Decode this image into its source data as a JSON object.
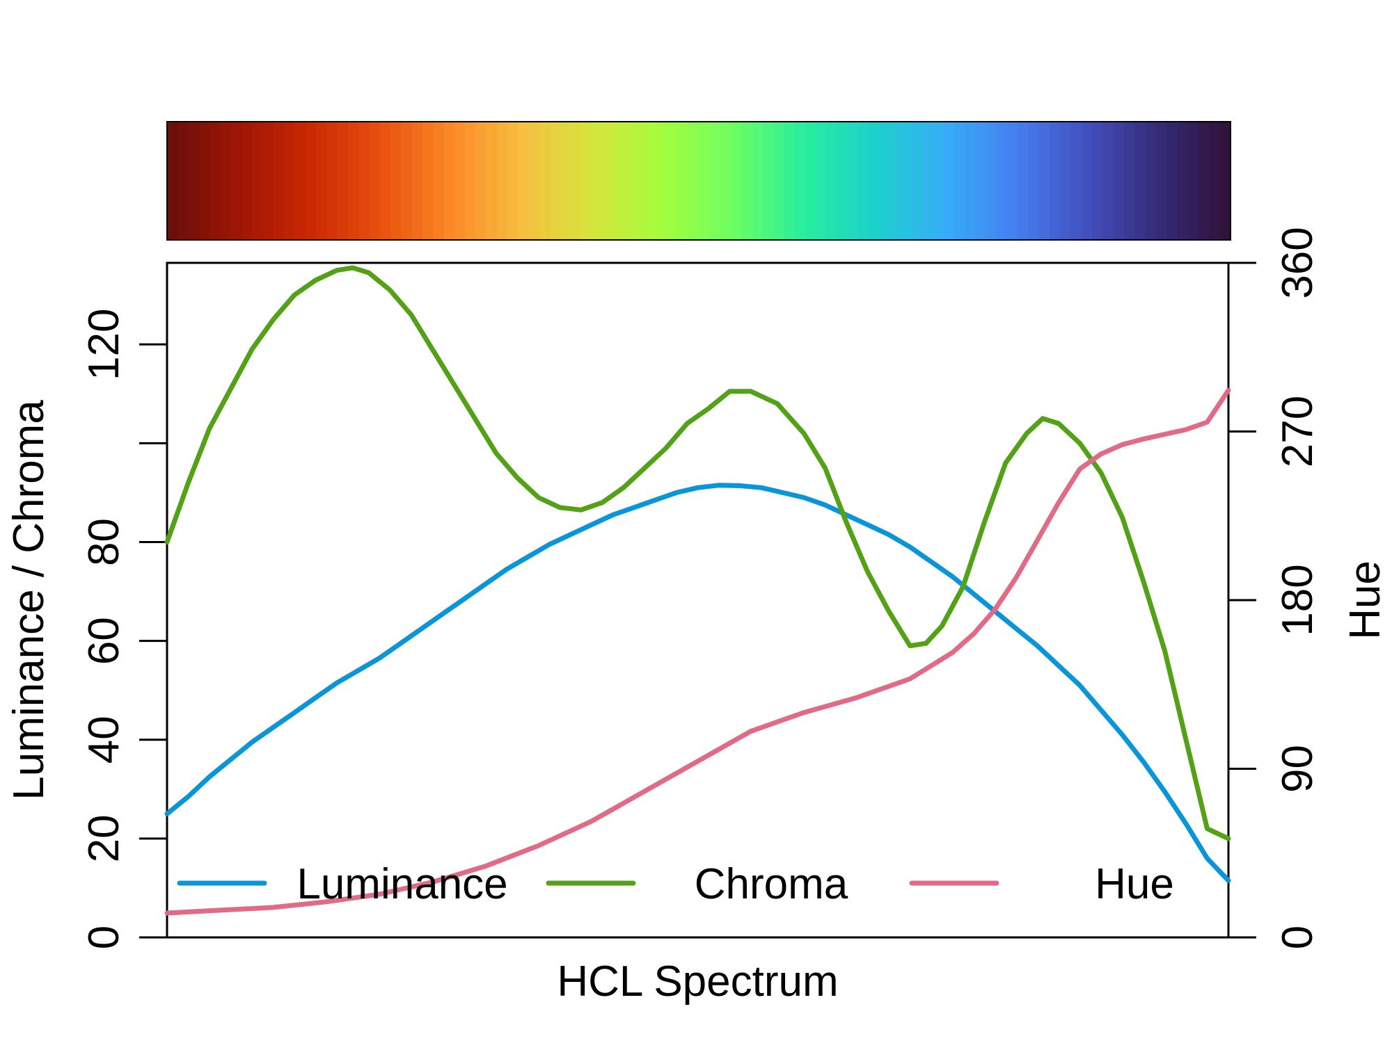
{
  "chart_data": {
    "type": "line",
    "xlabel": "HCL Spectrum",
    "ylabel_left": "Luminance / Chroma",
    "ylabel_right": "Hue",
    "ylim_left": [
      0,
      136.5
    ],
    "ylim_right": [
      0,
      360
    ],
    "yticks_left": [
      0,
      20,
      40,
      60,
      80,
      120
    ],
    "yticks_right": [
      0,
      90,
      180,
      270,
      360
    ],
    "legend_position": "bottom",
    "colorbar_stops": [
      "#6B0F0A",
      "#A11604",
      "#CC2A04",
      "#E9520F",
      "#FC8A27",
      "#F6BF40",
      "#D4E63C",
      "#A3FD3D",
      "#6CFE63",
      "#27EE9F",
      "#1DD0CB",
      "#36AEF8",
      "#4680F1",
      "#4250C0",
      "#352D7A",
      "#30123B"
    ],
    "series": [
      {
        "name": "Luminance",
        "color": "#0A95D9",
        "axis": "left",
        "values": [
          [
            0,
            25
          ],
          [
            0.02,
            28.5
          ],
          [
            0.04,
            32.5
          ],
          [
            0.06,
            36
          ],
          [
            0.08,
            39.5
          ],
          [
            0.1,
            42.5
          ],
          [
            0.12,
            45.5
          ],
          [
            0.14,
            48.5
          ],
          [
            0.16,
            51.5
          ],
          [
            0.18,
            54
          ],
          [
            0.2,
            56.5
          ],
          [
            0.22,
            59.5
          ],
          [
            0.24,
            62.5
          ],
          [
            0.26,
            65.5
          ],
          [
            0.28,
            68.5
          ],
          [
            0.3,
            71.5
          ],
          [
            0.32,
            74.5
          ],
          [
            0.34,
            77
          ],
          [
            0.36,
            79.5
          ],
          [
            0.38,
            81.5
          ],
          [
            0.4,
            83.5
          ],
          [
            0.42,
            85.5
          ],
          [
            0.44,
            87
          ],
          [
            0.46,
            88.5
          ],
          [
            0.48,
            90
          ],
          [
            0.5,
            91
          ],
          [
            0.52,
            91.5
          ],
          [
            0.54,
            91.4
          ],
          [
            0.56,
            91
          ],
          [
            0.58,
            90
          ],
          [
            0.6,
            89
          ],
          [
            0.62,
            87.5
          ],
          [
            0.64,
            85.5
          ],
          [
            0.66,
            83.5
          ],
          [
            0.68,
            81.5
          ],
          [
            0.7,
            79
          ],
          [
            0.72,
            76
          ],
          [
            0.74,
            73
          ],
          [
            0.76,
            69.5
          ],
          [
            0.78,
            66
          ],
          [
            0.8,
            62.5
          ],
          [
            0.82,
            59
          ],
          [
            0.84,
            55
          ],
          [
            0.86,
            51
          ],
          [
            0.88,
            46
          ],
          [
            0.9,
            41
          ],
          [
            0.92,
            35.5
          ],
          [
            0.94,
            29.5
          ],
          [
            0.96,
            23
          ],
          [
            0.98,
            16
          ],
          [
            1.0,
            11.5
          ]
        ]
      },
      {
        "name": "Chroma",
        "color": "#52A116",
        "axis": "left",
        "values": [
          [
            0,
            80
          ],
          [
            0.02,
            92
          ],
          [
            0.04,
            103
          ],
          [
            0.06,
            111
          ],
          [
            0.08,
            119
          ],
          [
            0.1,
            125
          ],
          [
            0.12,
            130
          ],
          [
            0.14,
            133
          ],
          [
            0.16,
            135
          ],
          [
            0.175,
            135.5
          ],
          [
            0.19,
            134.5
          ],
          [
            0.21,
            131
          ],
          [
            0.23,
            126
          ],
          [
            0.25,
            119
          ],
          [
            0.27,
            112
          ],
          [
            0.29,
            105
          ],
          [
            0.31,
            98
          ],
          [
            0.33,
            93
          ],
          [
            0.35,
            89
          ],
          [
            0.37,
            87
          ],
          [
            0.39,
            86.5
          ],
          [
            0.41,
            88
          ],
          [
            0.43,
            91
          ],
          [
            0.45,
            95
          ],
          [
            0.47,
            99
          ],
          [
            0.49,
            104
          ],
          [
            0.51,
            107
          ],
          [
            0.53,
            110.5
          ],
          [
            0.55,
            110.5
          ],
          [
            0.575,
            108
          ],
          [
            0.6,
            102
          ],
          [
            0.62,
            95
          ],
          [
            0.64,
            84
          ],
          [
            0.66,
            74
          ],
          [
            0.68,
            66
          ],
          [
            0.7,
            59
          ],
          [
            0.715,
            59.5
          ],
          [
            0.73,
            63
          ],
          [
            0.75,
            71
          ],
          [
            0.77,
            84
          ],
          [
            0.79,
            96
          ],
          [
            0.81,
            102
          ],
          [
            0.825,
            105
          ],
          [
            0.84,
            104
          ],
          [
            0.86,
            100
          ],
          [
            0.88,
            94
          ],
          [
            0.9,
            85
          ],
          [
            0.92,
            72
          ],
          [
            0.94,
            58
          ],
          [
            0.96,
            40
          ],
          [
            0.98,
            22
          ],
          [
            1.0,
            20
          ]
        ]
      },
      {
        "name": "Hue",
        "color": "#E16A86",
        "axis": "right",
        "values": [
          [
            0,
            13
          ],
          [
            0.05,
            14.5
          ],
          [
            0.1,
            16
          ],
          [
            0.15,
            19
          ],
          [
            0.2,
            23
          ],
          [
            0.25,
            29.5
          ],
          [
            0.3,
            38
          ],
          [
            0.35,
            49
          ],
          [
            0.4,
            62
          ],
          [
            0.45,
            78
          ],
          [
            0.5,
            94
          ],
          [
            0.55,
            110
          ],
          [
            0.6,
            120
          ],
          [
            0.65,
            128
          ],
          [
            0.7,
            138
          ],
          [
            0.72,
            145
          ],
          [
            0.74,
            152
          ],
          [
            0.76,
            162
          ],
          [
            0.78,
            175
          ],
          [
            0.8,
            192
          ],
          [
            0.82,
            212
          ],
          [
            0.84,
            232
          ],
          [
            0.86,
            250
          ],
          [
            0.88,
            258
          ],
          [
            0.9,
            263
          ],
          [
            0.92,
            266
          ],
          [
            0.94,
            268.5
          ],
          [
            0.96,
            271
          ],
          [
            0.98,
            275
          ],
          [
            1.0,
            292
          ]
        ]
      }
    ]
  }
}
